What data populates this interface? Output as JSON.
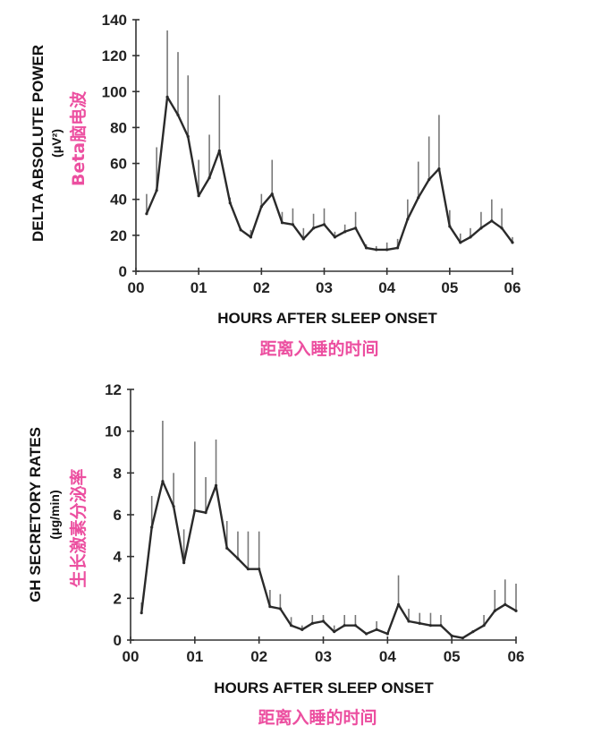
{
  "chart_data": [
    {
      "type": "line",
      "xlabel": "HOURS AFTER SLEEP ONSET",
      "xlabel_cn": "距离入睡的时间",
      "ylabel": "DELTA ABSOLUTE POWER",
      "ylabel_unit": "(μV²)",
      "ylabel_cn": "Beta脑电波",
      "xlim": [
        0,
        6
      ],
      "ylim": [
        0,
        140
      ],
      "xticks": [
        "00",
        "01",
        "02",
        "03",
        "04",
        "05",
        "06"
      ],
      "yticks": [
        "0",
        "20",
        "40",
        "60",
        "80",
        "100",
        "120",
        "140"
      ],
      "ytick_values": [
        0,
        20,
        40,
        60,
        80,
        100,
        120,
        140
      ],
      "grid": false,
      "x": [
        0.17,
        0.33,
        0.5,
        0.67,
        0.83,
        1,
        1.17,
        1.33,
        1.5,
        1.67,
        1.83,
        2,
        2.17,
        2.33,
        2.5,
        2.67,
        2.83,
        3,
        3.17,
        3.33,
        3.5,
        3.67,
        3.83,
        4,
        4.17,
        4.33,
        4.5,
        4.67,
        4.83,
        5,
        5.17,
        5.33,
        5.5,
        5.67,
        5.83,
        6
      ],
      "y": [
        32,
        45,
        97,
        87,
        75,
        42,
        52,
        67,
        38,
        23,
        19,
        36,
        43,
        27,
        26,
        18,
        24,
        26,
        19,
        22,
        24,
        13,
        12,
        12,
        13,
        29,
        41,
        51,
        57,
        25,
        16,
        19,
        24,
        28,
        24,
        16
      ],
      "error_upper": [
        43,
        69,
        134,
        122,
        109,
        62,
        76,
        98,
        41,
        24,
        23,
        43,
        62,
        33,
        35,
        24,
        32,
        35,
        22,
        26,
        33,
        15,
        14,
        16,
        18,
        40,
        61,
        75,
        87,
        34,
        21,
        24,
        33,
        40,
        35,
        19
      ]
    },
    {
      "type": "line",
      "xlabel": "HOURS AFTER SLEEP ONSET",
      "xlabel_cn": "距离入睡的时间",
      "ylabel": "GH SECRETORY RATES",
      "ylabel_unit": "(μg/min)",
      "ylabel_cn": "生长激素分泌率",
      "xlim": [
        0,
        6
      ],
      "ylim": [
        0,
        12
      ],
      "xticks": [
        "00",
        "01",
        "02",
        "03",
        "04",
        "05",
        "06"
      ],
      "yticks": [
        "0",
        "2",
        "4",
        "6",
        "8",
        "10",
        "12"
      ],
      "ytick_values": [
        0,
        2,
        4,
        6,
        8,
        10,
        12
      ],
      "grid": false,
      "x": [
        0.17,
        0.33,
        0.5,
        0.67,
        0.83,
        1,
        1.17,
        1.33,
        1.5,
        1.67,
        1.83,
        2,
        2.17,
        2.33,
        2.5,
        2.67,
        2.83,
        3,
        3.17,
        3.33,
        3.5,
        3.67,
        3.83,
        4,
        4.17,
        4.33,
        4.5,
        4.67,
        4.83,
        5,
        5.17,
        5.33,
        5.5,
        5.67,
        5.83,
        6
      ],
      "y": [
        1.3,
        5.4,
        7.6,
        6.4,
        3.7,
        6.2,
        6.1,
        7.4,
        4.4,
        3.9,
        3.4,
        3.4,
        1.6,
        1.5,
        0.7,
        0.5,
        0.8,
        0.9,
        0.4,
        0.7,
        0.7,
        0.3,
        0.5,
        0.3,
        1.7,
        0.9,
        0.8,
        0.7,
        0.7,
        0.2,
        0.1,
        0.4,
        0.7,
        1.4,
        1.7,
        1.4
      ],
      "error_upper": [
        1.8,
        6.9,
        10.5,
        8.0,
        5.3,
        9.5,
        7.8,
        9.6,
        5.7,
        5.2,
        5.2,
        5.2,
        2.4,
        2.2,
        1.1,
        0.7,
        1.2,
        1.2,
        0.7,
        1.2,
        1.2,
        0.3,
        0.9,
        0.3,
        3.1,
        1.5,
        1.3,
        1.3,
        1.2,
        0.2,
        0.1,
        0.4,
        1.2,
        2.4,
        2.9,
        2.7
      ]
    }
  ]
}
